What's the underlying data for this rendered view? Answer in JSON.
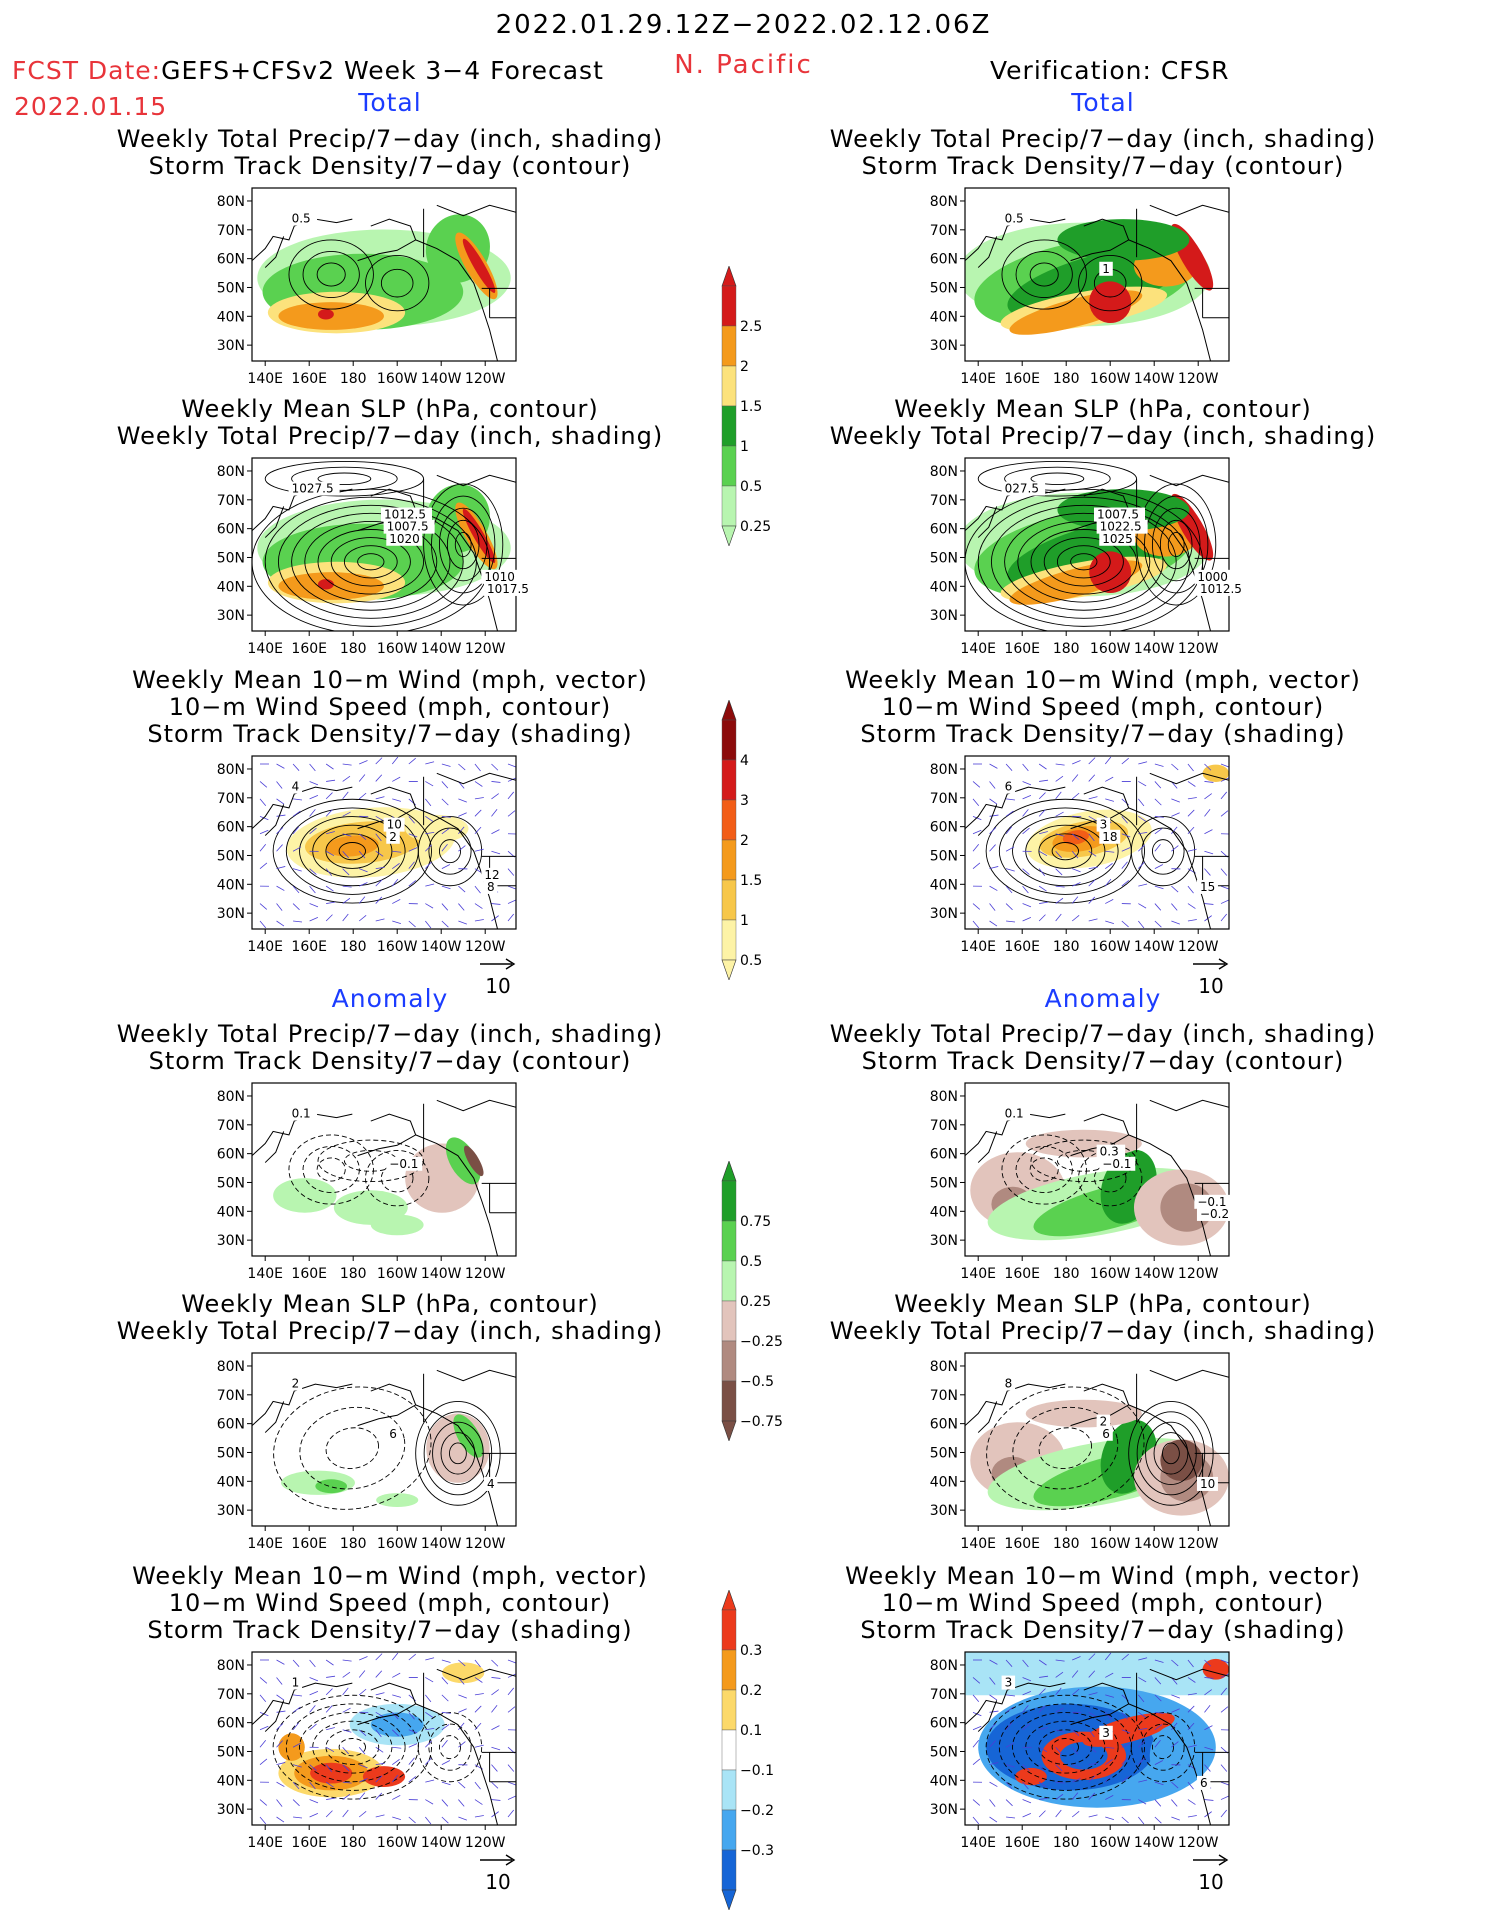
{
  "header": {
    "date_range": "2022.01.29.12Z−2022.02.12.06Z",
    "region": "N. Pacific",
    "fcst_label": "FCST Date:",
    "fcst_model": "GEFS+CFSv2 Week 3−4 Forecast",
    "fcst_date": "2022.01.15",
    "verification": "Verification: CFSR"
  },
  "sections": {
    "total": "Total",
    "anomaly": "Anomaly"
  },
  "titles": {
    "precip_storm": "Weekly Total Precip/7−day (inch, shading)\nStorm Track Density/7−day (contour)",
    "slp_precip": "Weekly Mean SLP (hPa, contour)\nWeekly Total Precip/7−day (inch, shading)",
    "wind_storm": "Weekly Mean 10−m Wind (mph, vector)\n10−m Wind Speed (mph, contour)\nStorm Track Density/7−day (shading)"
  },
  "map_axes": {
    "lat_labels": [
      "80N",
      "70N",
      "60N",
      "50N",
      "40N",
      "30N"
    ],
    "lon_labels": [
      "140E",
      "160E",
      "180",
      "160W",
      "140W",
      "120W"
    ]
  },
  "vector_reference": "10",
  "colorbars": {
    "precip_total": {
      "labels": [
        "2.5",
        "2",
        "1.5",
        "1",
        "0.5",
        "0.25"
      ],
      "colors": [
        "#d41a1a",
        "#f49a1c",
        "#fce27c",
        "#1f9e29",
        "#5ad150",
        "#b8f5b0"
      ]
    },
    "storm_total": {
      "labels": [
        "4",
        "3",
        "2",
        "1.5",
        "1",
        "0.5"
      ],
      "colors": [
        "#8c0b0b",
        "#d41a1a",
        "#f25d17",
        "#f49a1c",
        "#f7c74a",
        "#fdf3a6"
      ]
    },
    "precip_anom": {
      "labels": [
        "0.75",
        "0.5",
        "0.25",
        "−0.25",
        "−0.5",
        "−0.75"
      ],
      "colors": [
        "#1f9e29",
        "#5ad150",
        "#b8f5b0",
        "#e2c4bc",
        "#b08a80",
        "#7a4f45"
      ]
    },
    "storm_anom": {
      "labels": [
        "0.3",
        "0.2",
        "0.1",
        "−0.1",
        "−0.2",
        "−0.3"
      ],
      "colors": [
        "#ec3a1c",
        "#f49a1c",
        "#fcd96a",
        "#ffffff",
        "#a9e4f6",
        "#46a7ef",
        "#1665d6"
      ]
    }
  },
  "contour_labels": {
    "fc_total_precip": [
      "0.5"
    ],
    "obs_total_precip": [
      "0.5",
      "1"
    ],
    "fc_total_slp": [
      "1027.5",
      "1020",
      "1017.5",
      "1007.5",
      "1010",
      "1012.5"
    ],
    "obs_total_slp": [
      "027.5",
      "1025",
      "1012.5",
      "1022.5",
      "1000",
      "1007.5"
    ],
    "fc_total_wind": [
      "4",
      "2",
      "8",
      "10",
      "12"
    ],
    "obs_total_wind": [
      "6",
      "18",
      "15",
      "3"
    ],
    "fc_anom_precip": [
      "0.1",
      "−0.1"
    ],
    "obs_anom_precip": [
      "0.1",
      "−0.1",
      "−0.2",
      "0.3",
      "−0.1"
    ],
    "fc_anom_slp": [
      "2",
      "6",
      "4"
    ],
    "obs_anom_slp": [
      "8",
      "6",
      "10",
      "2"
    ],
    "fc_anom_wind": [
      "1"
    ],
    "obs_anom_wind": [
      "3",
      "3",
      "6"
    ]
  }
}
